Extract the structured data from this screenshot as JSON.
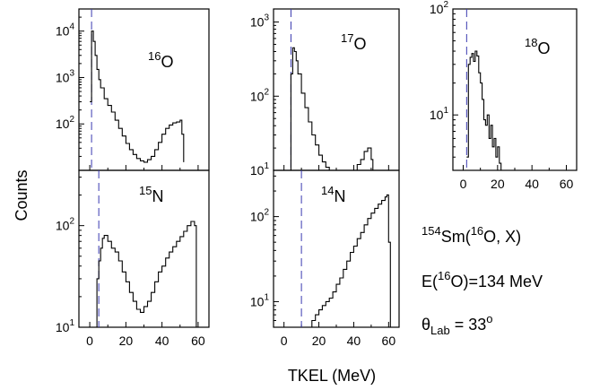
{
  "chart_data": [
    {
      "type": "line",
      "id": "p16o",
      "yscale": "log",
      "label_mass": "16",
      "label_elem": "O",
      "xlim": [
        -6,
        66
      ],
      "ylim": [
        10,
        30000
      ],
      "x_ticks": [],
      "y_ticks": [
        {
          "v": 100,
          "b": "10",
          "e": "2"
        },
        {
          "v": 1000,
          "b": "10",
          "e": "3"
        },
        {
          "v": 10000,
          "b": "10",
          "e": "4"
        }
      ],
      "dashed_x": 1,
      "series": [
        {
          "x": [
            0,
            1,
            2,
            3,
            4,
            5,
            6,
            8,
            10,
            12,
            14,
            16,
            18,
            20,
            22,
            24,
            26,
            28,
            30,
            32,
            34,
            36,
            38,
            40,
            42,
            44,
            46,
            48,
            50,
            51,
            52
          ],
          "y": [
            300,
            10000,
            6000,
            3000,
            1500,
            900,
            600,
            350,
            250,
            180,
            120,
            80,
            55,
            38,
            28,
            22,
            18,
            16,
            15,
            17,
            20,
            28,
            40,
            60,
            80,
            95,
            105,
            110,
            120,
            60,
            15
          ]
        }
      ]
    },
    {
      "type": "line",
      "id": "p17o",
      "yscale": "log",
      "label_mass": "17",
      "label_elem": "O",
      "xlim": [
        -6,
        66
      ],
      "ylim": [
        10,
        1500
      ],
      "x_ticks": [],
      "y_ticks": [
        {
          "v": 10,
          "b": "10",
          "e": "1"
        },
        {
          "v": 100,
          "b": "10",
          "e": "2"
        },
        {
          "v": 1000,
          "b": "10",
          "e": "3"
        }
      ],
      "dashed_x": 4,
      "series": [
        {
          "x": [
            3,
            4,
            5,
            6,
            7,
            8,
            10,
            12,
            14,
            16,
            18,
            20,
            22,
            24,
            26,
            28,
            30,
            34,
            38,
            42,
            44,
            46,
            48,
            50,
            51
          ],
          "y": [
            10,
            200,
            450,
            400,
            300,
            200,
            110,
            70,
            45,
            30,
            22,
            16,
            13,
            11,
            10,
            10,
            10,
            10,
            10,
            12,
            14,
            18,
            20,
            14,
            10
          ]
        }
      ]
    },
    {
      "type": "line",
      "id": "p18o",
      "yscale": "log",
      "label_mass": "18",
      "label_elem": "O",
      "xlim": [
        -6,
        66
      ],
      "ylim": [
        3,
        100
      ],
      "x_ticks": [
        0,
        20,
        40,
        60
      ],
      "y_ticks": [
        {
          "v": 10,
          "b": "10",
          "e": "1"
        },
        {
          "v": 100,
          "b": "10",
          "e": "2"
        }
      ],
      "dashed_x": 2,
      "series": [
        {
          "x": [
            2,
            3,
            4,
            5,
            6,
            7,
            8,
            9,
            10,
            11,
            12,
            13,
            14,
            15,
            16,
            17,
            18,
            19,
            20,
            21,
            22
          ],
          "y": [
            4,
            30,
            35,
            38,
            32,
            40,
            36,
            25,
            20,
            14,
            9,
            8,
            10,
            6,
            8,
            5,
            6,
            4,
            5,
            3.5,
            3
          ]
        }
      ]
    },
    {
      "type": "line",
      "id": "p15n",
      "yscale": "log",
      "label_mass": "15",
      "label_elem": "N",
      "xlim": [
        -6,
        66
      ],
      "ylim": [
        10,
        350
      ],
      "x_ticks": [
        0,
        20,
        40,
        60
      ],
      "y_ticks": [
        {
          "v": 10,
          "b": "10",
          "e": "1"
        },
        {
          "v": 100,
          "b": "10",
          "e": "2"
        }
      ],
      "dashed_x": 5,
      "series": [
        {
          "x": [
            3,
            4,
            5,
            6,
            7,
            8,
            10,
            12,
            14,
            16,
            18,
            20,
            22,
            24,
            26,
            28,
            30,
            32,
            34,
            36,
            38,
            40,
            42,
            44,
            46,
            48,
            50,
            52,
            54,
            56,
            58,
            59
          ],
          "y": [
            10,
            30,
            45,
            60,
            75,
            80,
            70,
            60,
            55,
            45,
            35,
            28,
            22,
            18,
            15,
            14,
            16,
            18,
            22,
            28,
            35,
            40,
            48,
            55,
            62,
            70,
            78,
            88,
            100,
            110,
            100,
            10
          ]
        }
      ]
    },
    {
      "type": "line",
      "id": "p14n",
      "yscale": "log",
      "label_mass": "14",
      "label_elem": "N",
      "xlim": [
        -6,
        66
      ],
      "ylim": [
        5,
        350
      ],
      "x_ticks": [
        0,
        20,
        40,
        60
      ],
      "y_ticks": [
        {
          "v": 10,
          "b": "10",
          "e": "1"
        },
        {
          "v": 100,
          "b": "10",
          "e": "2"
        }
      ],
      "dashed_x": 10,
      "series": [
        {
          "x": [
            14,
            16,
            18,
            20,
            22,
            24,
            26,
            28,
            30,
            32,
            34,
            36,
            38,
            40,
            42,
            44,
            46,
            48,
            50,
            52,
            54,
            56,
            58,
            59,
            60,
            61
          ],
          "y": [
            5,
            6,
            7,
            8,
            9,
            10,
            11,
            13,
            16,
            19,
            24,
            30,
            38,
            45,
            55,
            65,
            80,
            95,
            110,
            125,
            140,
            155,
            170,
            180,
            50,
            5
          ]
        }
      ]
    }
  ],
  "axes": {
    "ylabel": "Counts",
    "xlabel": "TKEL (MeV)"
  },
  "annotation": {
    "reaction": {
      "pre_mass": "154",
      "target": "Sm(",
      "proj_mass": "16",
      "rest": "O, X)"
    },
    "energy": {
      "pre": "E(",
      "mass": "16",
      "rest": "O)=134 MeV"
    },
    "angle": {
      "symbol": "θ",
      "sub": "Lab",
      "eq": " = 33",
      "sup": "o"
    }
  }
}
